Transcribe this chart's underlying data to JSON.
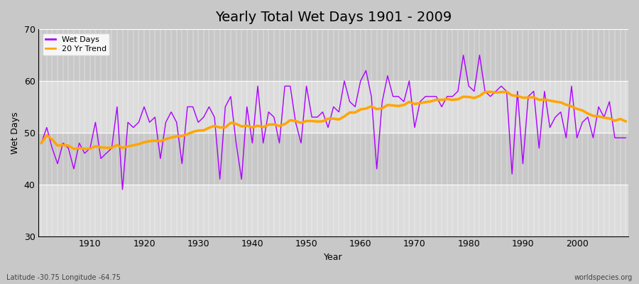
{
  "title": "Yearly Total Wet Days 1901 - 2009",
  "xlabel": "Year",
  "ylabel": "Wet Days",
  "wet_days_color": "#AA00FF",
  "trend_color": "#FFA500",
  "figure_facecolor": "#C8C8C8",
  "axes_facecolor": "#D4D4D4",
  "ylim": [
    30,
    70
  ],
  "yticks": [
    30,
    40,
    50,
    60,
    70
  ],
  "footnote_left": "Latitude -30.75 Longitude -64.75",
  "footnote_right": "worldspecies.org",
  "legend_labels": [
    "Wet Days",
    "20 Yr Trend"
  ],
  "years": [
    1901,
    1902,
    1903,
    1904,
    1905,
    1906,
    1907,
    1908,
    1909,
    1910,
    1911,
    1912,
    1913,
    1914,
    1915,
    1916,
    1917,
    1918,
    1919,
    1920,
    1921,
    1922,
    1923,
    1924,
    1925,
    1926,
    1927,
    1928,
    1929,
    1930,
    1931,
    1932,
    1933,
    1934,
    1935,
    1936,
    1937,
    1938,
    1939,
    1940,
    1941,
    1942,
    1943,
    1944,
    1945,
    1946,
    1947,
    1948,
    1949,
    1950,
    1951,
    1952,
    1953,
    1954,
    1955,
    1956,
    1957,
    1958,
    1959,
    1960,
    1961,
    1962,
    1963,
    1964,
    1965,
    1966,
    1967,
    1968,
    1969,
    1970,
    1971,
    1972,
    1973,
    1974,
    1975,
    1976,
    1977,
    1978,
    1979,
    1980,
    1981,
    1982,
    1983,
    1984,
    1985,
    1986,
    1987,
    1988,
    1989,
    1990,
    1991,
    1992,
    1993,
    1994,
    1995,
    1996,
    1997,
    1998,
    1999,
    2000,
    2001,
    2002,
    2003,
    2004,
    2005,
    2006,
    2007,
    2008,
    2009
  ],
  "wet_days": [
    48,
    51,
    47,
    44,
    48,
    47,
    43,
    48,
    46,
    47,
    52,
    45,
    46,
    47,
    55,
    39,
    52,
    51,
    52,
    55,
    52,
    53,
    45,
    52,
    54,
    52,
    44,
    55,
    55,
    52,
    53,
    55,
    53,
    41,
    55,
    57,
    48,
    41,
    55,
    48,
    59,
    48,
    54,
    53,
    48,
    59,
    59,
    52,
    48,
    59,
    53,
    53,
    54,
    51,
    55,
    54,
    60,
    56,
    55,
    60,
    62,
    57,
    43,
    56,
    61,
    57,
    57,
    56,
    60,
    51,
    56,
    57,
    57,
    57,
    55,
    57,
    57,
    58,
    65,
    59,
    58,
    65,
    58,
    57,
    58,
    59,
    58,
    42,
    58,
    44,
    57,
    58,
    47,
    58,
    51,
    53,
    54,
    49,
    59,
    49,
    52,
    53,
    49,
    55,
    53,
    56,
    49,
    49,
    49
  ],
  "stripe_colors": [
    "#DCDCDC",
    "#C8C8C8"
  ],
  "stripe_ranges": [
    [
      30,
      40
    ],
    [
      40,
      50
    ],
    [
      50,
      60
    ],
    [
      60,
      70
    ]
  ]
}
